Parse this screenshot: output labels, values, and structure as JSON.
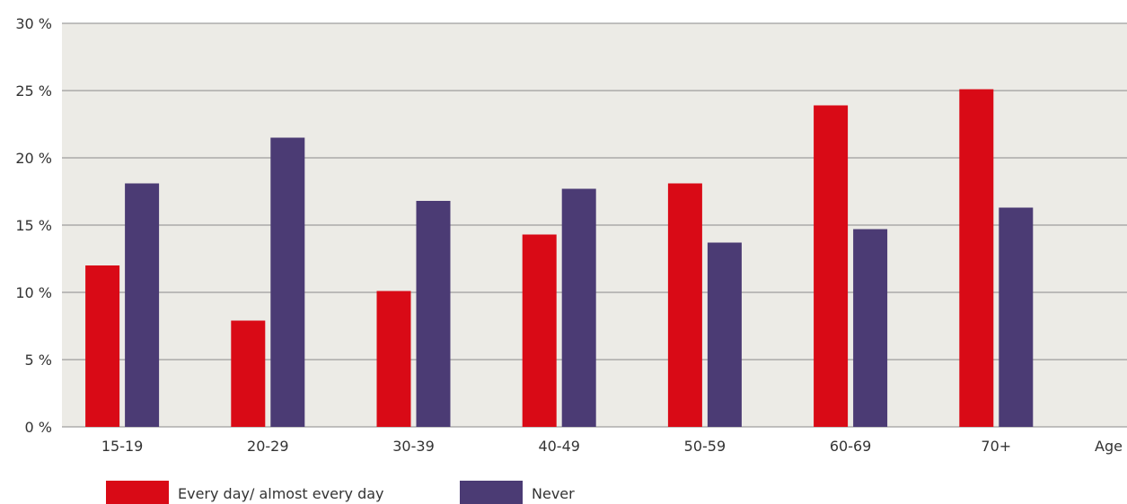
{
  "chart_data": {
    "type": "bar",
    "title": "",
    "xlabel": "Age",
    "ylabel": "",
    "ylim": [
      0,
      30
    ],
    "y_ticks": [
      0,
      5,
      10,
      15,
      20,
      25,
      30
    ],
    "y_tick_labels": [
      "0 %",
      "5 %",
      "10 %",
      "15 %",
      "20 %",
      "25 %",
      "30 %"
    ],
    "categories": [
      "15-19",
      "20-29",
      "30-39",
      "40-49",
      "50-59",
      "60-69",
      "70+"
    ],
    "series": [
      {
        "name": "Every day/ almost every day",
        "color": "#d90a16",
        "values": [
          12.0,
          7.9,
          10.1,
          14.3,
          18.1,
          23.9,
          25.1
        ]
      },
      {
        "name": "Never",
        "color": "#4b3b74",
        "values": [
          18.1,
          21.5,
          16.8,
          17.7,
          13.7,
          14.7,
          16.3
        ]
      }
    ],
    "grid": true,
    "legend_position": "bottom-left",
    "plot_background": "#ecebe6",
    "gridline_color": "#8a8a8a"
  }
}
